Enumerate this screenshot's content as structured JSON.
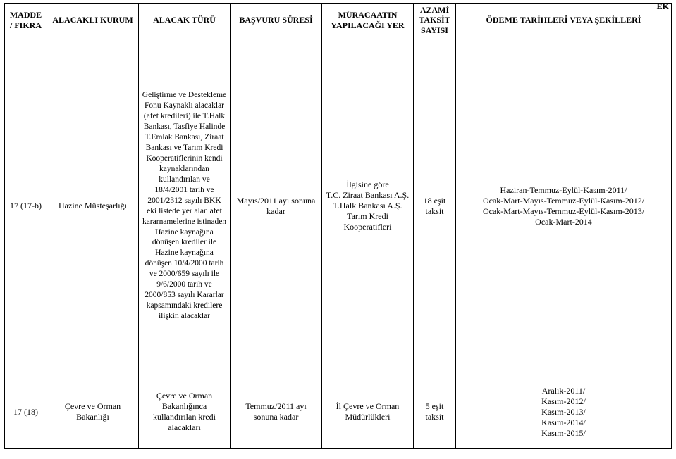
{
  "corner_label": "EK",
  "headers": {
    "col1": "MADDE / FIKRA",
    "col2": "ALACAKLI KURUM",
    "col3": "ALACAK TÜRÜ",
    "col4": "BAŞVURU SÜRESİ",
    "col5": "MÜRACAATIN YAPILACAĞI YER",
    "col6": "AZAMİ TAKSİT SAYISI",
    "col7": "ÖDEME TARİHLERİ VEYA ŞEKİLLERİ"
  },
  "rows": [
    {
      "madde": "17 (17-b)",
      "kurum": "Hazine Müsteşarlığı",
      "alacak": "Geliştirme ve Destekleme Fonu Kaynaklı alacaklar (afet kredileri) ile T.Halk Bankası, Tasfiye Halinde T.Emlak Bankası, Ziraat Bankası ve Tarım Kredi Kooperatiflerinin kendi kaynaklarından kullandırılan ve 18/4/2001 tarih ve 2001/2312 sayılı BKK eki listede yer alan afet kararnamelerine istinaden Hazine kaynağına dönüşen krediler ile Hazine kaynağına dönüşen 10/4/2000 tarih ve 2000/659 sayılı ile 9/6/2000 tarih ve 2000/853 sayılı Kararlar kapsamındaki kredilere ilişkin alacaklar",
      "basvuru": "Mayıs/2011 ayı sonuna kadar",
      "muracaat_l1": "İlgisine göre",
      "muracaat_l2": "T.C. Ziraat Bankası A.Ş.",
      "muracaat_l3": "T.Halk Bankası A.Ş.",
      "muracaat_l4": "Tarım Kredi Kooperatifleri",
      "taksit": "18 eşit taksit",
      "odeme_l1": "Haziran-Temmuz-Eylül-Kasım-2011/",
      "odeme_l2": "Ocak-Mart-Mayıs-Temmuz-Eylül-Kasım-2012/",
      "odeme_l3": "Ocak-Mart-Mayıs-Temmuz-Eylül-Kasım-2013/",
      "odeme_l4": "Ocak-Mart-2014"
    },
    {
      "madde": "17 (18)",
      "kurum": "Çevre ve Orman Bakanlığı",
      "alacak": "Çevre ve Orman Bakanlığınca kullandırılan kredi alacakları",
      "basvuru": "Temmuz/2011 ayı sonuna kadar",
      "muracaat": "İl Çevre ve Orman Müdürlükleri",
      "taksit": "5 eşit taksit",
      "odeme_l1": "Aralık-2011/",
      "odeme_l2": "Kasım-2012/",
      "odeme_l3": "Kasım-2013/",
      "odeme_l4": "Kasım-2014/",
      "odeme_l5": "Kasım-2015/"
    }
  ]
}
